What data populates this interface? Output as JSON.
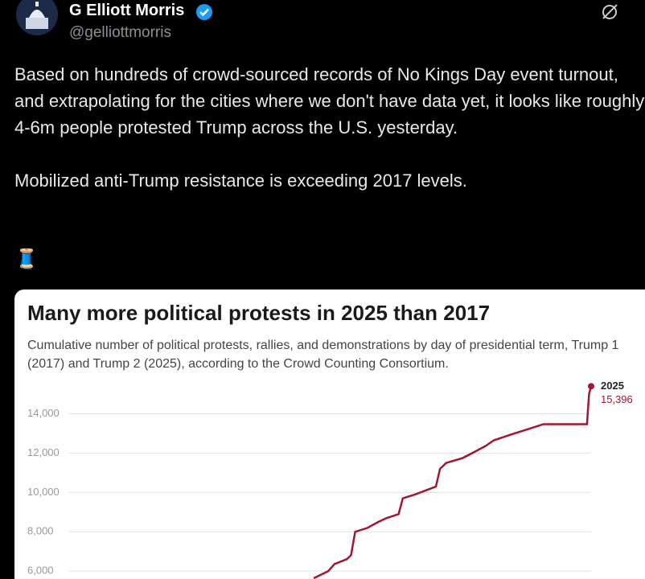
{
  "tweet": {
    "name": "G Elliott Morris",
    "handle": "@gelliottmorris",
    "paragraphs": [
      "Based on hundreds of crowd-sourced records of No Kings Day event turnout, and extrapolating for the cities where we don't have data yet, it looks like roughly 4-6m people protested Trump across the U.S. yesterday.",
      "Mobilized anti-Trump resistance is exceeding 2017 levels."
    ],
    "emoji": "🧵"
  },
  "chart_data": {
    "type": "line",
    "title": "Many more political protests in 2025 than 2017",
    "subtitle": "Cumulative number of political protests, rallies, and demonstrations by day of presidential term, Trump 1 (2017) and Trump 2 (2025), according to the Crowd Counting Consortium.",
    "x": [
      138,
      145,
      148,
      154,
      156,
      158,
      164,
      169,
      173,
      179,
      181,
      187,
      192,
      197,
      199,
      202,
      210,
      216,
      221,
      225,
      235,
      241,
      249,
      270,
      271,
      272
    ],
    "xlim": [
      0,
      272
    ],
    "series": [
      {
        "name": "2025",
        "color": "#a3162f",
        "values": [
          5640,
          6000,
          6360,
          6610,
          6810,
          8000,
          8200,
          8490,
          8690,
          8900,
          9700,
          9900,
          10100,
          10300,
          11200,
          11500,
          11750,
          12080,
          12360,
          12650,
          13000,
          13200,
          13470,
          13470,
          15000,
          15396
        ],
        "value_labels": [
          null,
          null,
          null,
          null,
          null,
          null,
          null,
          null,
          null,
          null,
          null,
          null,
          null,
          null,
          null,
          null,
          null,
          null,
          null,
          null,
          null,
          null,
          null,
          null,
          null,
          "15,396"
        ]
      }
    ],
    "ylim": [
      5600,
      15900
    ],
    "yticks": [
      {
        "value": 6000,
        "label": "6,000"
      },
      {
        "value": 8000,
        "label": "8,000"
      },
      {
        "value": 10000,
        "label": "10,000"
      },
      {
        "value": 12000,
        "label": "12,000"
      },
      {
        "value": 14000,
        "label": "14,000"
      }
    ],
    "grid": true
  }
}
